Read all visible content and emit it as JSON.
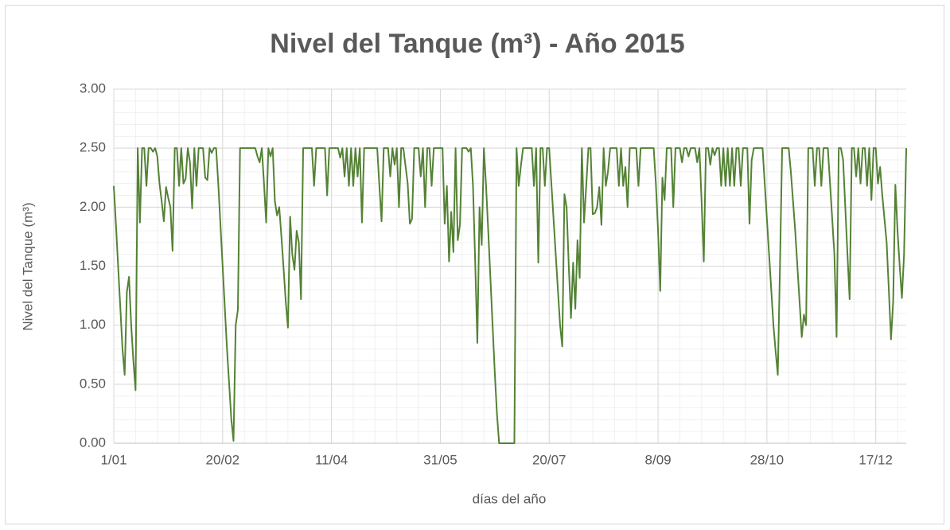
{
  "chart_data": {
    "type": "line",
    "title": "Nivel del Tanque (m³) - Año 2015",
    "x_label": "días del año",
    "y_label": "Nivel del Tanque (m³)",
    "color": "#548235",
    "grid": true,
    "minor_grid": true,
    "xlim": [
      0,
      364
    ],
    "xticks": [
      {
        "value": 0,
        "label": "1/01"
      },
      {
        "value": 50,
        "label": "20/02"
      },
      {
        "value": 100,
        "label": "11/04"
      },
      {
        "value": 150,
        "label": "31/05"
      },
      {
        "value": 200,
        "label": "20/07"
      },
      {
        "value": 250,
        "label": "8/09"
      },
      {
        "value": 300,
        "label": "28/10"
      },
      {
        "value": 350,
        "label": "17/12"
      }
    ],
    "ylim": [
      0,
      3
    ],
    "yticks": [
      {
        "value": 0,
        "label": "0.00"
      },
      {
        "value": 0.5,
        "label": "0.50"
      },
      {
        "value": 1,
        "label": "1.00"
      },
      {
        "value": 1.5,
        "label": "1.50"
      },
      {
        "value": 2,
        "label": "2.00"
      },
      {
        "value": 2.5,
        "label": "2.50"
      },
      {
        "value": 3,
        "label": "3.00"
      }
    ],
    "values": [
      2.18,
      1.85,
      1.5,
      1.15,
      0.8,
      0.58,
      1.28,
      1.41,
      1.0,
      0.7,
      0.45,
      2.5,
      1.87,
      2.5,
      2.5,
      2.18,
      2.5,
      2.5,
      2.47,
      2.5,
      2.43,
      2.2,
      2.05,
      1.88,
      2.17,
      2.08,
      2.0,
      1.63,
      2.5,
      2.5,
      2.18,
      2.5,
      2.2,
      2.24,
      2.5,
      2.38,
      1.99,
      2.5,
      2.18,
      2.5,
      2.5,
      2.5,
      2.25,
      2.23,
      2.5,
      2.46,
      2.5,
      2.5,
      2.2,
      1.85,
      1.5,
      1.15,
      0.8,
      0.5,
      0.2,
      0.02,
      1.0,
      1.13,
      2.5,
      2.5,
      2.5,
      2.5,
      2.5,
      2.5,
      2.5,
      2.5,
      2.43,
      2.38,
      2.5,
      2.2,
      1.87,
      2.5,
      2.43,
      2.5,
      2.05,
      1.93,
      2.0,
      1.75,
      1.48,
      1.2,
      0.98,
      1.92,
      1.6,
      1.47,
      1.8,
      1.7,
      1.22,
      2.5,
      2.5,
      2.5,
      2.5,
      2.5,
      2.18,
      2.5,
      2.5,
      2.5,
      2.5,
      2.5,
      2.1,
      2.5,
      2.5,
      2.5,
      2.5,
      2.5,
      2.42,
      2.5,
      2.26,
      2.5,
      2.18,
      2.5,
      2.18,
      2.5,
      2.26,
      2.5,
      1.87,
      2.5,
      2.5,
      2.5,
      2.5,
      2.5,
      2.5,
      2.5,
      2.18,
      1.88,
      2.5,
      2.5,
      2.5,
      2.26,
      2.5,
      2.36,
      2.5,
      2.0,
      2.5,
      2.5,
      2.35,
      2.2,
      1.86,
      1.9,
      2.5,
      2.5,
      2.5,
      2.26,
      2.5,
      2.0,
      2.5,
      2.5,
      2.18,
      2.5,
      2.5,
      2.5,
      2.5,
      2.5,
      1.86,
      2.18,
      1.54,
      1.96,
      1.62,
      2.5,
      1.72,
      1.85,
      2.5,
      2.5,
      2.5,
      2.47,
      2.5,
      2.18,
      1.54,
      0.85,
      2.0,
      1.68,
      2.5,
      2.18,
      1.8,
      1.4,
      1.0,
      0.6,
      0.25,
      0,
      0,
      0,
      0,
      0,
      0,
      0,
      0,
      2.5,
      2.18,
      2.35,
      2.5,
      2.5,
      2.5,
      2.5,
      2.5,
      2.18,
      2.5,
      1.53,
      2.5,
      2.5,
      2.18,
      2.5,
      2.5,
      2.2,
      1.9,
      1.6,
      1.3,
      1.0,
      0.82,
      2.11,
      2.0,
      1.5,
      1.06,
      1.53,
      1.14,
      1.72,
      1.4,
      2.5,
      1.87,
      2.18,
      2.5,
      2.5,
      1.94,
      1.95,
      2.0,
      2.17,
      1.85,
      2.5,
      2.18,
      2.3,
      2.5,
      2.5,
      2.5,
      2.5,
      2.18,
      2.5,
      2.18,
      2.34,
      2.0,
      2.5,
      2.5,
      2.5,
      2.5,
      2.18,
      2.5,
      2.5,
      2.5,
      2.5,
      2.5,
      2.5,
      2.5,
      2.2,
      1.8,
      1.29,
      2.25,
      2.06,
      2.5,
      2.5,
      2.5,
      2.0,
      2.5,
      2.5,
      2.5,
      2.38,
      2.5,
      2.5,
      2.43,
      2.5,
      2.5,
      2.5,
      2.38,
      2.5,
      2.05,
      1.54,
      2.5,
      2.5,
      2.36,
      2.5,
      2.44,
      2.5,
      2.5,
      2.18,
      2.5,
      2.18,
      2.5,
      2.18,
      2.5,
      2.18,
      2.5,
      2.5,
      2.18,
      2.5,
      2.5,
      2.5,
      1.86,
      2.4,
      2.5,
      2.5,
      2.5,
      2.5,
      2.5,
      2.2,
      1.9,
      1.6,
      1.3,
      1.0,
      0.78,
      0.58,
      1.5,
      2.5,
      2.5,
      2.5,
      2.5,
      2.3,
      2.05,
      1.8,
      1.5,
      1.2,
      0.9,
      1.09,
      1.0,
      2.5,
      2.5,
      2.5,
      2.18,
      2.5,
      2.5,
      2.18,
      2.5,
      2.5,
      2.5,
      2.2,
      1.9,
      1.6,
      0.9,
      2.5,
      2.5,
      2.4,
      2.0,
      1.6,
      1.22,
      2.5,
      2.5,
      2.26,
      2.5,
      2.2,
      2.5,
      2.5,
      2.18,
      2.5,
      2.06,
      2.5,
      2.5,
      2.2,
      2.34,
      2.1,
      1.9,
      1.7,
      1.3,
      0.88,
      1.2,
      2.19,
      1.8,
      1.5,
      1.23,
      1.6,
      2.5
    ]
  }
}
